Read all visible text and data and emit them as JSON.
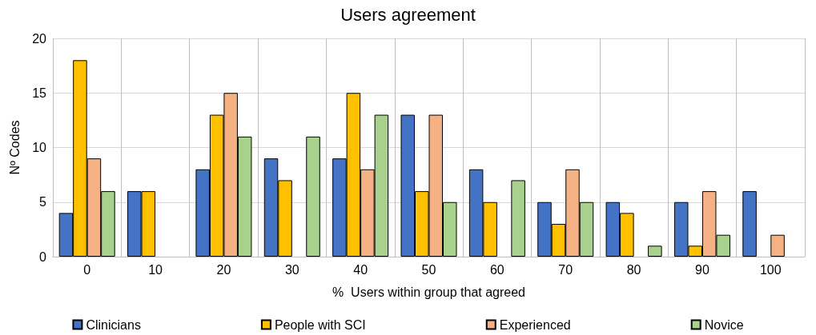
{
  "chart_data": {
    "type": "bar",
    "title": "Users agreement",
    "xlabel": "%  Users within group that agreed",
    "ylabel": "Nº Codes",
    "categories": [
      "0",
      "10",
      "20",
      "30",
      "40",
      "50",
      "60",
      "70",
      "80",
      "90",
      "100"
    ],
    "series": [
      {
        "name": "Clinicians",
        "color": "#4472c4",
        "values": [
          4,
          6,
          8,
          9,
          9,
          13,
          8,
          5,
          5,
          5,
          6
        ]
      },
      {
        "name": "People with SCI",
        "color": "#ffc000",
        "values": [
          18,
          6,
          13,
          7,
          15,
          6,
          5,
          3,
          4,
          1,
          0
        ]
      },
      {
        "name": "Experienced",
        "color": "#f4b183",
        "values": [
          9,
          0,
          15,
          0,
          8,
          13,
          0,
          8,
          0,
          6,
          2
        ]
      },
      {
        "name": "Novice",
        "color": "#a9d18e",
        "values": [
          6,
          0,
          11,
          11,
          13,
          5,
          7,
          5,
          1,
          2,
          0
        ]
      }
    ],
    "ylim": [
      0,
      20
    ],
    "yticks": [
      0,
      5,
      10,
      15,
      20
    ],
    "grid": true,
    "legend": "bottom"
  }
}
